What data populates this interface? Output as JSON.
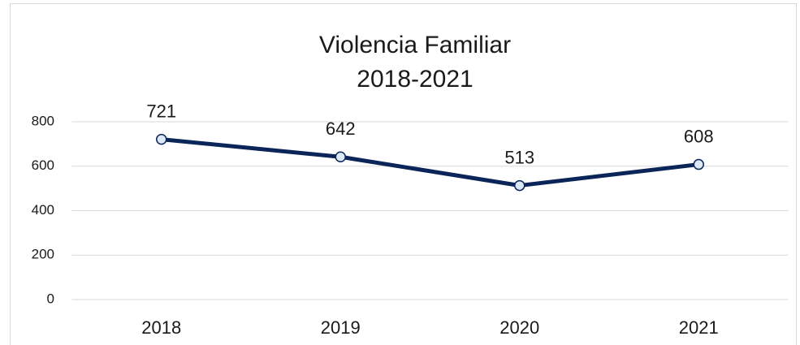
{
  "chart_data": {
    "type": "line",
    "title": [
      "Violencia Familiar",
      "2018-2021"
    ],
    "categories": [
      "2018",
      "2019",
      "2020",
      "2021"
    ],
    "values": [
      721,
      642,
      513,
      608
    ],
    "color": "#0c2559",
    "marker_fill": "#dbe8f5",
    "ylim": [
      0,
      800
    ],
    "yticks": [
      0,
      200,
      400,
      600,
      800
    ],
    "grid": true
  }
}
